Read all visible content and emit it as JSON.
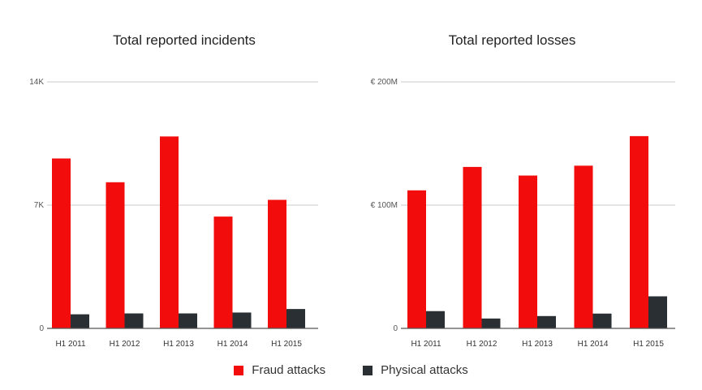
{
  "colors": {
    "fraud": "#f20c0c",
    "physical": "#2a2f33",
    "grid": "#c8c8c8",
    "axis": "#555555"
  },
  "legend": {
    "fraud_label": "Fraud attacks",
    "physical_label": "Physical attacks"
  },
  "chart_data": [
    {
      "type": "bar",
      "title": "Total reported incidents",
      "categories": [
        "H1 2011",
        "H1 2012",
        "H1 2013",
        "H1 2014",
        "H1 2015"
      ],
      "series": [
        {
          "name": "Fraud attacks",
          "values": [
            9650,
            8300,
            10900,
            6350,
            7300
          ]
        },
        {
          "name": "Physical attacks",
          "values": [
            800,
            850,
            850,
            900,
            1100
          ]
        }
      ],
      "ylim": [
        0,
        14000
      ],
      "yticks": [
        {
          "value": 0,
          "label": "0"
        },
        {
          "value": 7000,
          "label": "7K"
        },
        {
          "value": 14000,
          "label": "14K"
        }
      ],
      "grid": true,
      "legend": "bottom-center"
    },
    {
      "type": "bar",
      "title": "Total reported losses",
      "categories": [
        "H1 2011",
        "H1 2012",
        "H1 2013",
        "H1 2014",
        "H1 2015"
      ],
      "series": [
        {
          "name": "Fraud attacks",
          "values": [
            112,
            131,
            124,
            132,
            156
          ]
        },
        {
          "name": "Physical attacks",
          "values": [
            14,
            8,
            10,
            12,
            26
          ]
        }
      ],
      "ylim": [
        0,
        200
      ],
      "yticks": [
        {
          "value": 0,
          "label": "0"
        },
        {
          "value": 100,
          "label": "€ 100M"
        },
        {
          "value": 200,
          "label": "€ 200M"
        }
      ],
      "grid": true,
      "legend": "bottom-center"
    }
  ]
}
